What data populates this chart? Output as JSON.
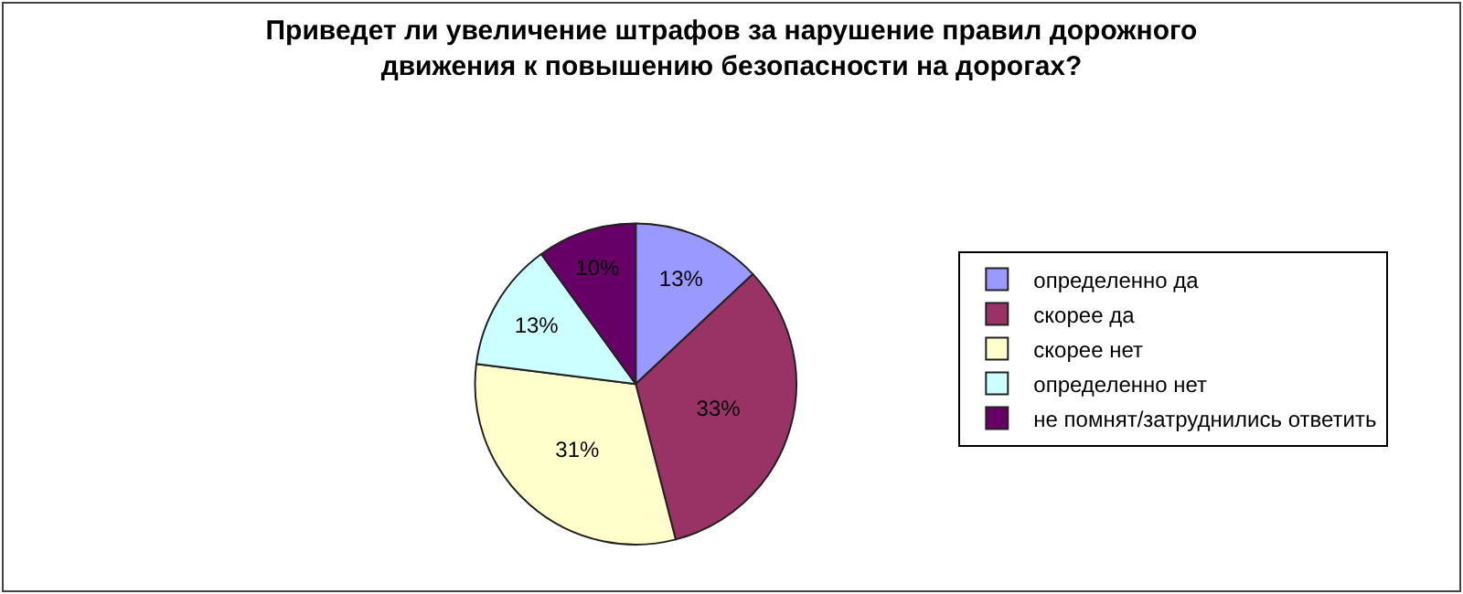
{
  "chart_data": {
    "type": "pie",
    "title": "Приведет ли увеличение штрафов за нарушение правил дорожного движения к повышению безопасности на дорогах?",
    "categories": [
      "определенно да",
      "скорее да",
      "скорее нет",
      "определенно нет",
      "не помнят/затруднились ответить"
    ],
    "values": [
      13,
      33,
      31,
      13,
      10
    ],
    "value_labels": [
      "13%",
      "33%",
      "31%",
      "13%",
      "10%"
    ],
    "colors": [
      "#9999ff",
      "#993366",
      "#ffffcc",
      "#ccffff",
      "#660066"
    ],
    "legend": "right"
  }
}
